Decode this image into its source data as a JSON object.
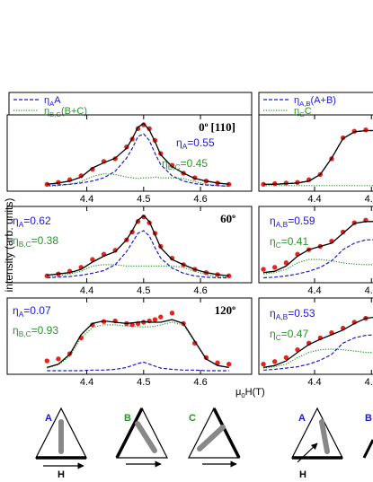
{
  "chart_data": {
    "type": "line",
    "y_label": "intensity (arb. units)",
    "x_label": {
      "text": "μ",
      "sub": "0",
      "rest": "H(T)"
    },
    "legends": [
      {
        "items": [
          {
            "text": "η",
            "sub": "A",
            "rest": "A",
            "color": "#1a1acc",
            "style": "dashed"
          },
          {
            "text": "η",
            "sub": "B,C",
            "rest": "(B+C)",
            "color": "#229922",
            "style": "dotted"
          }
        ]
      },
      {
        "items": [
          {
            "text": "η",
            "sub": "A,B",
            "rest": "(A+B)",
            "color": "#1a1acc",
            "style": "dashed"
          },
          {
            "text": "η",
            "sub": "C",
            "rest": "C",
            "color": "#229922",
            "style": "dotted"
          }
        ]
      }
    ],
    "panels": [
      {
        "xlim": [
          4.26,
          4.69
        ],
        "ylim": [
          0,
          1
        ],
        "xticks": [
          4.4,
          4.5,
          4.6
        ],
        "x": [
          4.33,
          4.35,
          4.37,
          4.39,
          4.41,
          4.43,
          4.45,
          4.47,
          4.48,
          4.49,
          4.5,
          4.51,
          4.52,
          4.53,
          4.55,
          4.57,
          4.59,
          4.61,
          4.63,
          4.65
        ],
        "annotations": [
          {
            "text": "0",
            "sup": "o",
            "rest": "[110]",
            "color": "#000000",
            "bold": true
          },
          {
            "text": "η",
            "sub": "A",
            "rest": "=0.55",
            "color": "#1a1acc"
          },
          {
            "text": "η",
            "sub": "B,C",
            "rest": "=0.45",
            "color": "#229922"
          }
        ],
        "series": [
          {
            "color": "#229922",
            "style": "dotted",
            "values": [
              0.02,
              0.03,
              0.05,
              0.09,
              0.17,
              0.21,
              0.2,
              0.16,
              0.15,
              0.14,
              0.15,
              0.15,
              0.16,
              0.15,
              0.15,
              0.14,
              0.09,
              0.05,
              0.03,
              0.02
            ]
          },
          {
            "color": "#1a1acc",
            "style": "dashed",
            "values": [
              0.03,
              0.04,
              0.05,
              0.07,
              0.1,
              0.15,
              0.25,
              0.45,
              0.6,
              0.78,
              0.82,
              0.72,
              0.52,
              0.35,
              0.18,
              0.1,
              0.06,
              0.04,
              0.03,
              0.02
            ]
          },
          {
            "color": "#e8231e",
            "style": "markers",
            "values": [
              0.05,
              0.08,
              0.12,
              0.18,
              0.28,
              0.4,
              0.44,
              0.62,
              0.74,
              0.9,
              0.96,
              0.9,
              0.72,
              0.52,
              0.34,
              0.22,
              0.15,
              0.1,
              0.07,
              0.05
            ]
          },
          {
            "color": "#000000",
            "style": "solid",
            "values": [
              0.05,
              0.07,
              0.1,
              0.16,
              0.3,
              0.38,
              0.45,
              0.6,
              0.75,
              0.92,
              0.98,
              0.88,
              0.7,
              0.5,
              0.32,
              0.22,
              0.14,
              0.1,
              0.07,
              0.05
            ]
          }
        ]
      },
      {
        "xlim": [
          4.26,
          4.69
        ],
        "ylim": [
          0,
          1
        ],
        "xticks": [
          4.4,
          4.5,
          4.6
        ],
        "x": [
          4.33,
          4.35,
          4.37,
          4.39,
          4.41,
          4.43,
          4.45,
          4.47,
          4.48,
          4.49,
          4.5,
          4.51,
          4.52,
          4.53,
          4.55,
          4.57,
          4.59,
          4.61,
          4.63,
          4.65
        ],
        "annotations": [
          {
            "text": "60",
            "sup": "o",
            "color": "#000000",
            "bold": true
          },
          {
            "text": "η",
            "sub": "A",
            "rest": "=0.62",
            "color": "#1a1acc"
          },
          {
            "text": "η",
            "sub": "B,C",
            "rest": "=0.38",
            "color": "#229922"
          }
        ],
        "series": [
          {
            "color": "#229922",
            "style": "dotted",
            "values": [
              0.03,
              0.05,
              0.08,
              0.12,
              0.2,
              0.22,
              0.22,
              0.2,
              0.2,
              0.2,
              0.2,
              0.2,
              0.2,
              0.2,
              0.2,
              0.18,
              0.12,
              0.07,
              0.04,
              0.03
            ]
          },
          {
            "color": "#1a1acc",
            "style": "dashed",
            "values": [
              0.02,
              0.03,
              0.04,
              0.06,
              0.09,
              0.13,
              0.22,
              0.42,
              0.56,
              0.7,
              0.74,
              0.66,
              0.48,
              0.32,
              0.17,
              0.09,
              0.05,
              0.03,
              0.02,
              0.02
            ]
          },
          {
            "color": "#e8231e",
            "style": "markers",
            "values": [
              0.05,
              0.08,
              0.12,
              0.18,
              0.3,
              0.38,
              0.44,
              0.6,
              0.72,
              0.88,
              0.95,
              0.86,
              0.7,
              0.5,
              0.32,
              0.22,
              0.15,
              0.1,
              0.07,
              0.05
            ]
          },
          {
            "color": "#000000",
            "style": "solid",
            "values": [
              0.06,
              0.08,
              0.1,
              0.15,
              0.26,
              0.35,
              0.42,
              0.6,
              0.74,
              0.9,
              0.97,
              0.88,
              0.68,
              0.48,
              0.3,
              0.22,
              0.15,
              0.1,
              0.07,
              0.05
            ]
          }
        ]
      },
      {
        "xlim": [
          4.26,
          4.69
        ],
        "ylim": [
          0,
          1
        ],
        "xticks": [
          4.4,
          4.5,
          4.6
        ],
        "x": [
          4.33,
          4.35,
          4.37,
          4.39,
          4.41,
          4.43,
          4.45,
          4.47,
          4.48,
          4.49,
          4.5,
          4.51,
          4.52,
          4.53,
          4.55,
          4.57,
          4.59,
          4.61,
          4.63,
          4.65
        ],
        "annotations": [
          {
            "text": "120",
            "sup": "o",
            "color": "#000000",
            "bold": true
          },
          {
            "text": "η",
            "sub": "A",
            "rest": "=0.07",
            "color": "#1a1acc"
          },
          {
            "text": "η",
            "sub": "B,C",
            "rest": "=0.93",
            "color": "#229922"
          }
        ],
        "series": [
          {
            "color": "#229922",
            "style": "dotted",
            "values": [
              0.04,
              0.09,
              0.22,
              0.5,
              0.66,
              0.7,
              0.7,
              0.68,
              0.68,
              0.67,
              0.67,
              0.67,
              0.68,
              0.7,
              0.74,
              0.7,
              0.44,
              0.18,
              0.08,
              0.05
            ]
          },
          {
            "color": "#1a1acc",
            "style": "dashed",
            "values": [
              0,
              0,
              0,
              0,
              0.01,
              0.01,
              0.02,
              0.05,
              0.08,
              0.11,
              0.13,
              0.1,
              0.07,
              0.04,
              0.02,
              0.01,
              0.01,
              0,
              0,
              0
            ]
          },
          {
            "color": "#e8231e",
            "style": "markers",
            "values": [
              0.15,
              0.18,
              0.26,
              0.5,
              0.7,
              0.75,
              0.76,
              0.72,
              0.7,
              0.72,
              0.74,
              0.76,
              0.78,
              0.82,
              0.88,
              0.72,
              0.42,
              0.2,
              0.12,
              0.1
            ]
          },
          {
            "color": "#000000",
            "style": "solid",
            "values": [
              0.05,
              0.1,
              0.25,
              0.55,
              0.72,
              0.76,
              0.74,
              0.72,
              0.73,
              0.74,
              0.75,
              0.74,
              0.74,
              0.74,
              0.78,
              0.72,
              0.45,
              0.18,
              0.08,
              0.05
            ]
          }
        ]
      },
      {
        "xlim": [
          4.302,
          4.732
        ],
        "ylim": [
          0,
          1
        ],
        "xticks": [
          4.4,
          4.5
        ],
        "x": [
          4.31,
          4.33,
          4.35,
          4.37,
          4.39,
          4.41,
          4.43,
          4.45,
          4.47,
          4.49,
          4.51
        ],
        "annotations": [],
        "series": [
          {
            "color": "#229922",
            "style": "dotted",
            "values": [
              0.03,
              0.03,
              0.03,
              0.03,
              0.03,
              0.03,
              0.03,
              0.03,
              0.03,
              0.03,
              0.03
            ]
          },
          {
            "color": "#1a1acc",
            "style": "dashed",
            "values": [
              0.05,
              0.05,
              0.06,
              0.07,
              0.1,
              0.2,
              0.45,
              0.75,
              0.85,
              0.87,
              0.87
            ]
          },
          {
            "color": "#e8231e",
            "style": "markers",
            "values": [
              0.05,
              0.06,
              0.07,
              0.08,
              0.12,
              0.2,
              0.44,
              0.76,
              0.86,
              0.88,
              0.88
            ]
          },
          {
            "color": "#000000",
            "style": "solid",
            "values": [
              0.05,
              0.05,
              0.06,
              0.07,
              0.1,
              0.2,
              0.45,
              0.75,
              0.85,
              0.87,
              0.87
            ]
          }
        ]
      },
      {
        "xlim": [
          4.302,
          4.732
        ],
        "ylim": [
          0,
          1
        ],
        "xticks": [
          4.4,
          4.5
        ],
        "x": [
          4.31,
          4.33,
          4.35,
          4.37,
          4.39,
          4.41,
          4.43,
          4.45,
          4.47,
          4.49,
          4.51
        ],
        "annotations": [
          {
            "text": "η",
            "sub": "A,B",
            "rest": "=0.59",
            "color": "#1a1acc"
          },
          {
            "text": "η",
            "sub": "C",
            "rest": "=0.41",
            "color": "#229922"
          }
        ],
        "series": [
          {
            "color": "#229922",
            "style": "dotted",
            "values": [
              0.08,
              0.1,
              0.15,
              0.25,
              0.3,
              0.3,
              0.28,
              0.25,
              0.23,
              0.22,
              0.22
            ]
          },
          {
            "color": "#1a1acc",
            "style": "dashed",
            "values": [
              0.02,
              0.03,
              0.05,
              0.08,
              0.12,
              0.18,
              0.28,
              0.45,
              0.55,
              0.6,
              0.6
            ]
          },
          {
            "color": "#e8231e",
            "style": "markers",
            "values": [
              0.15,
              0.18,
              0.25,
              0.38,
              0.45,
              0.5,
              0.58,
              0.72,
              0.86,
              0.9,
              0.9
            ]
          },
          {
            "color": "#000000",
            "style": "solid",
            "values": [
              0.1,
              0.12,
              0.2,
              0.35,
              0.45,
              0.5,
              0.55,
              0.7,
              0.85,
              0.88,
              0.88
            ]
          }
        ]
      },
      {
        "xlim": [
          4.302,
          4.732
        ],
        "ylim": [
          0,
          1
        ],
        "xticks": [
          4.4,
          4.5
        ],
        "x": [
          4.31,
          4.33,
          4.35,
          4.37,
          4.39,
          4.41,
          4.43,
          4.45,
          4.47,
          4.49,
          4.51
        ],
        "annotations": [
          {
            "text": "η",
            "sub": "A,B",
            "rest": "=0.53",
            "color": "#1a1acc"
          },
          {
            "text": "η",
            "sub": "C",
            "rest": "=0.47",
            "color": "#229922"
          }
        ],
        "series": [
          {
            "color": "#229922",
            "style": "dotted",
            "values": [
              0.04,
              0.06,
              0.1,
              0.2,
              0.28,
              0.32,
              0.33,
              0.32,
              0.3,
              0.28,
              0.28
            ]
          },
          {
            "color": "#1a1acc",
            "style": "dashed",
            "values": [
              0.01,
              0.02,
              0.04,
              0.06,
              0.1,
              0.16,
              0.25,
              0.42,
              0.5,
              0.54,
              0.55
            ]
          },
          {
            "color": "#e8231e",
            "style": "markers",
            "values": [
              0.1,
              0.14,
              0.2,
              0.32,
              0.42,
              0.5,
              0.58,
              0.65,
              0.74,
              0.8,
              0.8
            ]
          },
          {
            "color": "#000000",
            "style": "solid",
            "values": [
              0.05,
              0.08,
              0.15,
              0.28,
              0.4,
              0.48,
              0.55,
              0.62,
              0.72,
              0.8,
              0.82
            ]
          }
        ]
      }
    ]
  },
  "diagrams": {
    "labels": [
      {
        "text": "A",
        "color": "#1a1acc"
      },
      {
        "text": "B",
        "color": "#229922"
      },
      {
        "text": "C",
        "color": "#229922"
      },
      {
        "text": "A",
        "color": "#1a1acc"
      },
      {
        "text": "B",
        "color": "#1a1acc"
      }
    ],
    "field": [
      "H",
      "H"
    ]
  }
}
